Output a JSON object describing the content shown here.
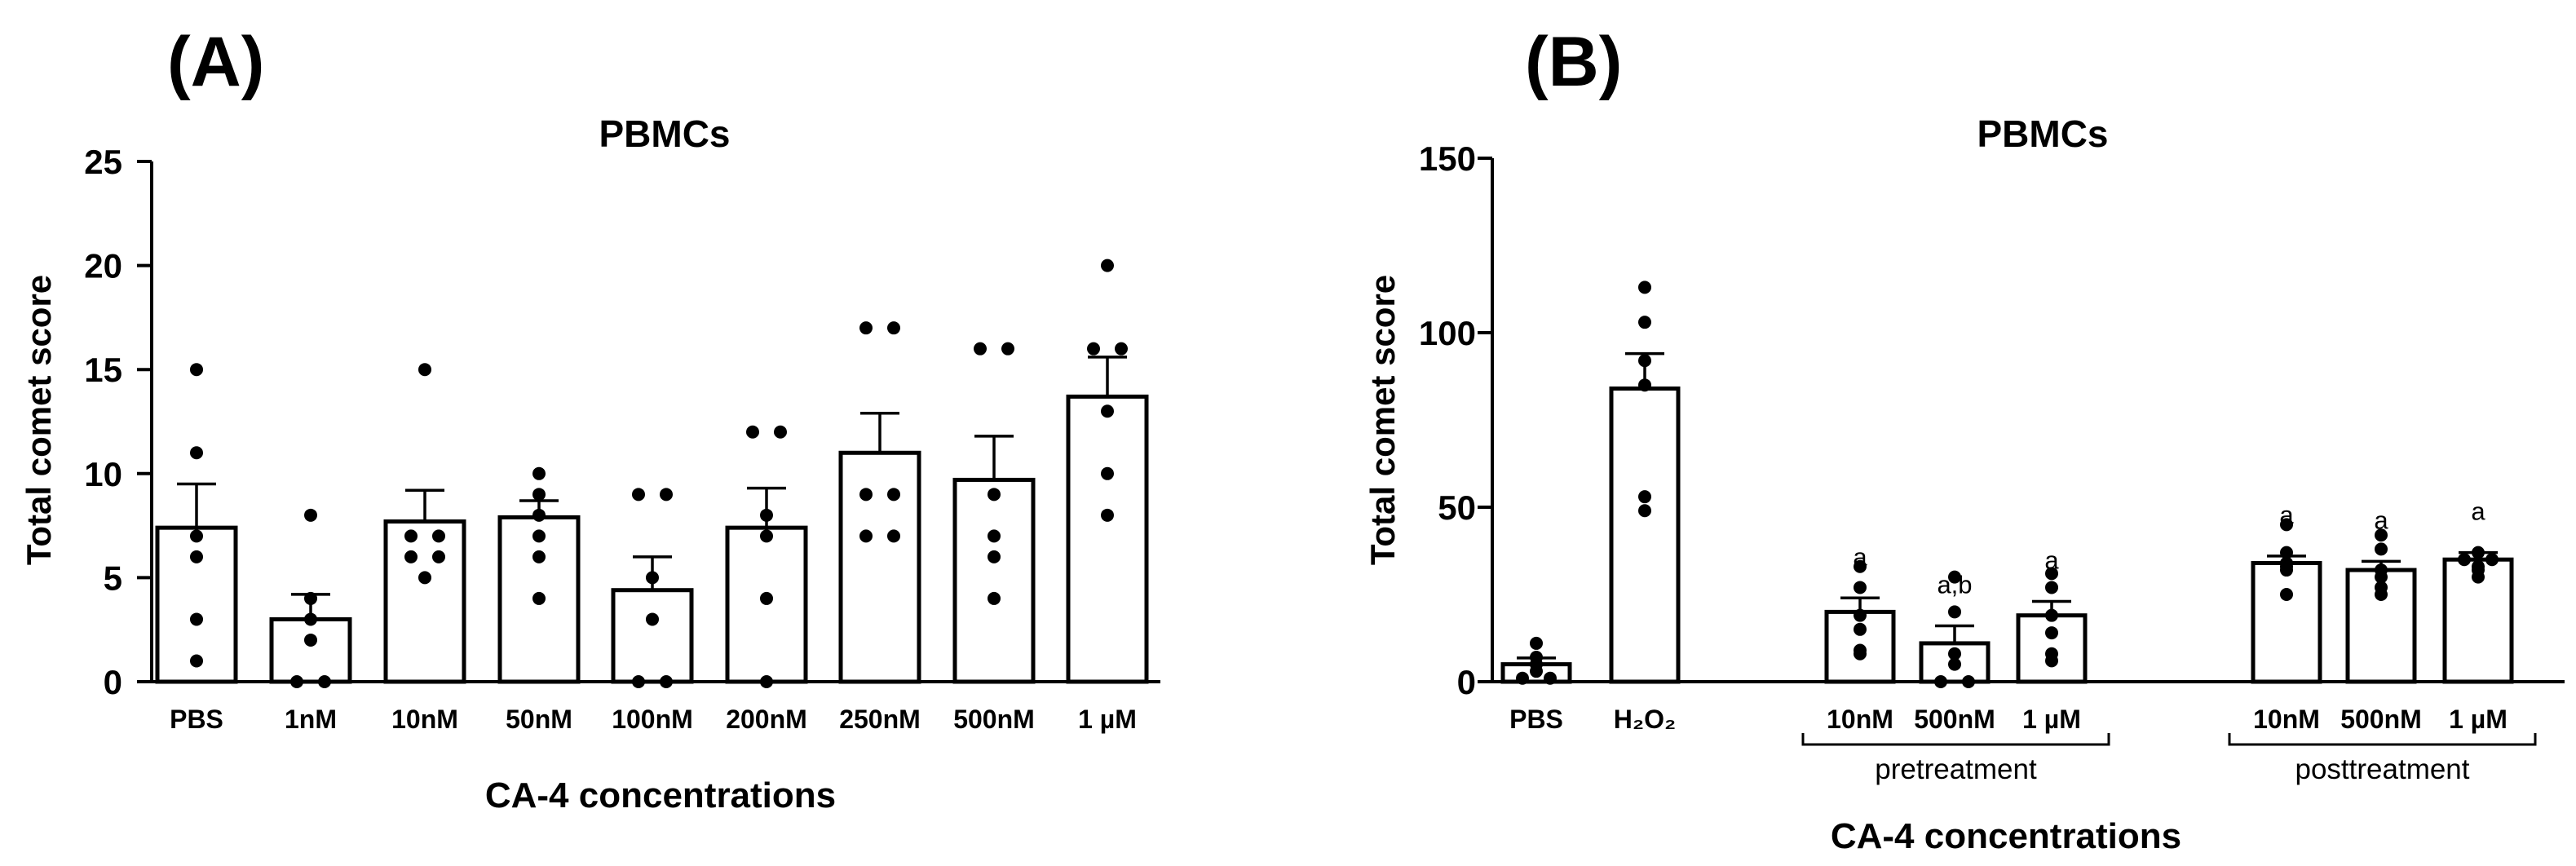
{
  "chart_data": [
    {
      "type": "bar",
      "panel_label": "(A)",
      "title": "PBMCs",
      "xlabel": "CA-4 concentrations",
      "ylabel": "Total comet score",
      "ylim": [
        0,
        25
      ],
      "yticks": [
        0,
        5,
        10,
        15,
        20,
        25
      ],
      "ytick_labels": [
        "0",
        "5",
        "10",
        "15",
        "20",
        "25"
      ],
      "categories": [
        "PBS",
        "1nM",
        "10nM",
        "50nM",
        "100nM",
        "200nM",
        "250nM",
        "500nM",
        "1 µM"
      ],
      "values": [
        7.4,
        3.0,
        7.7,
        7.9,
        4.4,
        7.4,
        11.0,
        9.7,
        13.7
      ],
      "error": [
        2.1,
        1.2,
        1.5,
        0.8,
        1.6,
        1.9,
        1.9,
        2.1,
        1.9
      ],
      "points": [
        [
          15,
          11,
          6,
          3,
          1,
          7
        ],
        [
          8,
          4,
          3,
          0,
          0,
          2
        ],
        [
          15,
          7,
          7,
          6,
          5,
          6
        ],
        [
          10,
          9,
          8,
          7,
          6,
          4
        ],
        [
          9,
          9,
          5,
          3,
          0,
          0
        ],
        [
          12,
          12,
          8,
          7,
          4,
          0
        ],
        [
          17,
          17,
          9,
          7,
          7,
          9
        ],
        [
          16,
          16,
          9,
          7,
          6,
          4
        ],
        [
          20,
          16,
          16,
          13,
          10,
          8
        ]
      ]
    },
    {
      "type": "bar",
      "panel_label": "(B)",
      "title": "PBMCs",
      "xlabel": "CA-4 concentrations",
      "ylabel": "Total comet score",
      "ylim": [
        0,
        150
      ],
      "yticks": [
        0,
        50,
        100,
        150
      ],
      "ytick_labels": [
        "0",
        "50",
        "100",
        "150"
      ],
      "categories": [
        "PBS",
        "H₂O₂",
        "10nM",
        "500nM",
        "1 µM",
        "10nM",
        "500nM",
        "1 µM"
      ],
      "values": [
        5,
        84,
        20,
        11,
        19,
        34,
        32,
        35
      ],
      "error": [
        1.8,
        10,
        4,
        5,
        4,
        2,
        2.5,
        2
      ],
      "points": [
        [
          11,
          7,
          5,
          3,
          1,
          1
        ],
        [
          113,
          103,
          92,
          85,
          53,
          49
        ],
        [
          33,
          27,
          19,
          15,
          9,
          8
        ],
        [
          30,
          20,
          8,
          5,
          0,
          0
        ],
        [
          31,
          27,
          19,
          14,
          8,
          6
        ],
        [
          45,
          37,
          34,
          33,
          32,
          25
        ],
        [
          42,
          38,
          32,
          30,
          27,
          25
        ],
        [
          37,
          35,
          35,
          33,
          32,
          30
        ]
      ],
      "significance": [
        "",
        "",
        "a",
        "a,b",
        "a",
        "a",
        "a",
        "a"
      ],
      "groups": [
        {
          "label": "pretreatment",
          "span": [
            2,
            4
          ]
        },
        {
          "label": "posttreatment",
          "span": [
            5,
            7
          ]
        }
      ]
    }
  ]
}
